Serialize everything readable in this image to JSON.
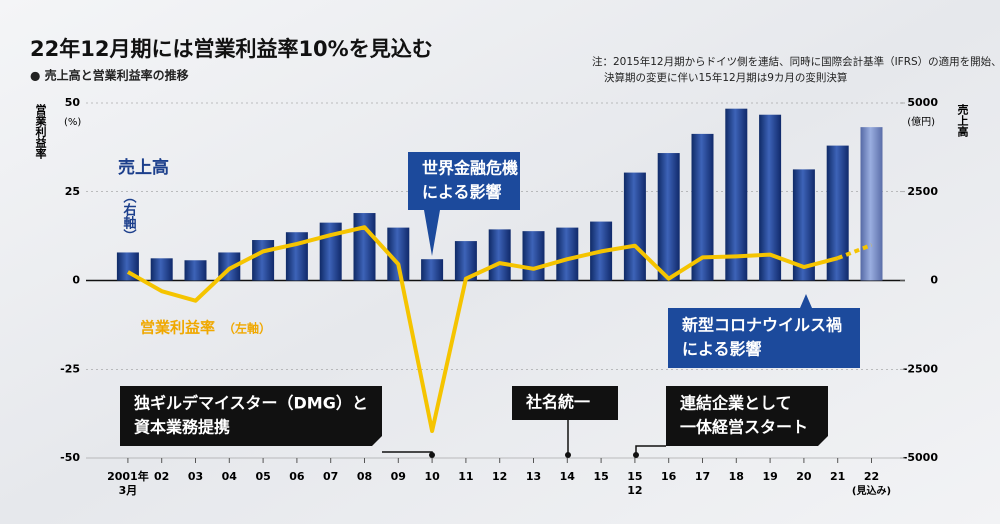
{
  "chart_data": {
    "type": "bar-line",
    "title": "22年12月期には営業利益率10%を見込む",
    "subtitle": "● 売上高と営業利益率の推移",
    "note": [
      "注：2015年12月期からドイツ側を連結、同時に国際会計基準（IFRS）の適用を開始、",
      "決算期の変更に伴い15年12月期は9カ月の変則決算"
    ],
    "y_label": "営業利益率",
    "y_unit": "(%)",
    "y2_label": "売上高",
    "y2_unit": "(億円)",
    "categories": [
      [
        "2001年",
        "3月"
      ],
      [
        "02"
      ],
      [
        "03"
      ],
      [
        "04"
      ],
      [
        "05"
      ],
      [
        "06"
      ],
      [
        "07"
      ],
      [
        "08"
      ],
      [
        "09"
      ],
      [
        "10"
      ],
      [
        "11"
      ],
      [
        "12"
      ],
      [
        "13"
      ],
      [
        "14"
      ],
      [
        "15"
      ],
      [
        "15",
        "12"
      ],
      [
        "16"
      ],
      [
        "17"
      ],
      [
        "18"
      ],
      [
        "19"
      ],
      [
        "20"
      ],
      [
        "21"
      ],
      [
        "22",
        "(見込み)"
      ]
    ],
    "ylim": [
      -50,
      50
    ],
    "yticks": [
      -50,
      -25,
      0,
      25,
      50
    ],
    "y2lim": [
      -5000,
      5000
    ],
    "y2ticks": [
      -5000,
      -2500,
      0,
      2500,
      5000
    ],
    "series": [
      {
        "name": [
          "売上高",
          "（右軸）"
        ],
        "type": "bar",
        "axis": "y2",
        "color": "#1c3f8c",
        "values": [
          790,
          625,
          570,
          790,
          1140,
          1360,
          1630,
          1900,
          1490,
          600,
          1110,
          1440,
          1390,
          1490,
          1660,
          3040,
          3590,
          4130,
          4840,
          4670,
          3130,
          3800,
          4320
        ]
      },
      {
        "name": [
          "営業利益率",
          "（左軸）"
        ],
        "type": "line",
        "axis": "y",
        "color": "#f5c400",
        "values": [
          2.4,
          -3,
          -5.7,
          3.3,
          8.2,
          10.3,
          12.8,
          15,
          4.6,
          -42.4,
          0.5,
          4.9,
          3.3,
          6,
          8.2,
          9.8,
          0.5,
          6.5,
          6.8,
          7.3,
          3.8,
          6.3,
          10
        ]
      }
    ],
    "annotations": {
      "crisis": [
        "世界金融危機",
        "による影響"
      ],
      "corona": [
        "新型コロナウイルス禍",
        "による影響"
      ],
      "dmg": [
        "独ギルデマイスター（DMG）と",
        "資本業務提携"
      ],
      "rename": [
        "社名統一"
      ],
      "integrate": [
        "連結企業として",
        "一体経営スタート"
      ]
    }
  }
}
